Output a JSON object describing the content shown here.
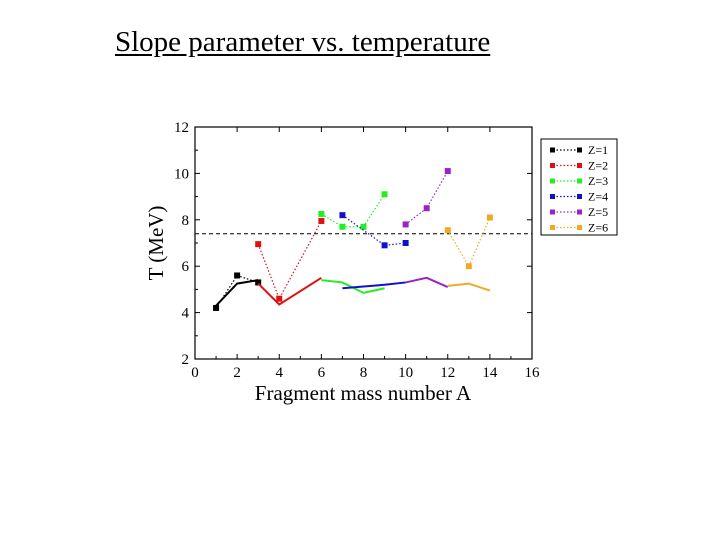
{
  "slide": {
    "title": "Slope parameter vs. temperature"
  },
  "chart_data": {
    "type": "line",
    "xlabel": "Fragment mass number A",
    "ylabel": "T (MeV)",
    "xlim": [
      0,
      16
    ],
    "ylim": [
      2,
      12
    ],
    "xticks": [
      "0",
      "2",
      "4",
      "6",
      "8",
      "10",
      "12",
      "14",
      "16"
    ],
    "yticks": [
      "2",
      "4",
      "6",
      "8",
      "10",
      "12"
    ],
    "grid": false,
    "legend_position": "top-right outside",
    "reference_line": {
      "y": 7.4,
      "style": "dashed",
      "color": "#000000"
    },
    "series": [
      {
        "name": "Z=1",
        "color": "#000000",
        "points": [
          [
            1,
            4.2
          ],
          [
            2,
            5.6
          ],
          [
            3,
            5.3
          ]
        ],
        "solid": [
          [
            1,
            4.3
          ],
          [
            2,
            5.25
          ],
          [
            3,
            5.4
          ]
        ]
      },
      {
        "name": "Z=2",
        "color": "#dd1111",
        "points": [
          [
            3,
            6.95
          ],
          [
            4,
            4.6
          ],
          [
            6,
            7.95
          ]
        ],
        "solid": [
          [
            3,
            5.25
          ],
          [
            4,
            4.35
          ],
          [
            6,
            5.5
          ]
        ]
      },
      {
        "name": "Z=3",
        "color": "#22ee22",
        "points": [
          [
            6,
            8.25
          ],
          [
            7,
            7.7
          ],
          [
            8,
            7.7
          ],
          [
            9,
            9.1
          ]
        ],
        "solid": [
          [
            6,
            5.4
          ],
          [
            7,
            5.3
          ],
          [
            8,
            4.85
          ],
          [
            9,
            5.05
          ]
        ]
      },
      {
        "name": "Z=4",
        "color": "#1111cc",
        "points": [
          [
            7,
            8.2
          ],
          [
            9,
            6.9
          ],
          [
            10,
            7.0
          ]
        ],
        "solid": [
          [
            7,
            5.05
          ],
          [
            9,
            5.2
          ],
          [
            10,
            5.3
          ]
        ]
      },
      {
        "name": "Z=5",
        "color": "#9922cc",
        "points": [
          [
            10,
            7.8
          ],
          [
            11,
            8.5
          ],
          [
            12,
            10.1
          ]
        ],
        "solid": [
          [
            10,
            5.3
          ],
          [
            11,
            5.5
          ],
          [
            12,
            5.1
          ]
        ]
      },
      {
        "name": "Z=6",
        "color": "#eeaa22",
        "points": [
          [
            12,
            7.55
          ],
          [
            13,
            6.0
          ],
          [
            14,
            8.1
          ]
        ],
        "solid": [
          [
            12,
            5.15
          ],
          [
            13,
            5.25
          ],
          [
            14,
            4.95
          ]
        ]
      }
    ]
  }
}
